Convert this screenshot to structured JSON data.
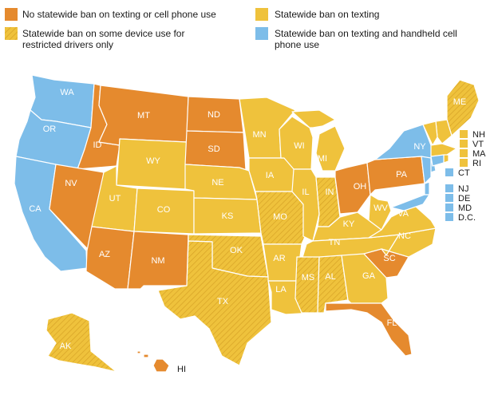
{
  "colors": {
    "no_ban": "#e58a2e",
    "texting_ban": "#efc23c",
    "restricted_drivers": "#efc23c",
    "texting_handheld": "#7dbde9",
    "hatch": "#d6a226",
    "border": "#ffffff"
  },
  "legend": [
    {
      "label": "No statewide ban on texting or cell phone use",
      "category": "no_ban"
    },
    {
      "label": "Statewide ban on texting",
      "category": "texting_ban"
    },
    {
      "label": "Statewide ban on some device use for restricted drivers only",
      "category": "restricted_drivers"
    },
    {
      "label": "Statewide ban on texting and handheld cell phone use",
      "category": "texting_handheld"
    }
  ],
  "states": [
    {
      "abbr": "WA",
      "category": "texting_handheld"
    },
    {
      "abbr": "OR",
      "category": "texting_handheld"
    },
    {
      "abbr": "CA",
      "category": "texting_handheld"
    },
    {
      "abbr": "ID",
      "category": "no_ban"
    },
    {
      "abbr": "NV",
      "category": "no_ban"
    },
    {
      "abbr": "MT",
      "category": "no_ban"
    },
    {
      "abbr": "WY",
      "category": "texting_ban"
    },
    {
      "abbr": "UT",
      "category": "texting_ban"
    },
    {
      "abbr": "AZ",
      "category": "no_ban"
    },
    {
      "abbr": "CO",
      "category": "texting_ban"
    },
    {
      "abbr": "NM",
      "category": "no_ban"
    },
    {
      "abbr": "ND",
      "category": "no_ban"
    },
    {
      "abbr": "SD",
      "category": "no_ban"
    },
    {
      "abbr": "NE",
      "category": "texting_ban"
    },
    {
      "abbr": "KS",
      "category": "texting_ban"
    },
    {
      "abbr": "OK",
      "category": "restricted_drivers"
    },
    {
      "abbr": "TX",
      "category": "restricted_drivers"
    },
    {
      "abbr": "MN",
      "category": "texting_ban"
    },
    {
      "abbr": "IA",
      "category": "texting_ban"
    },
    {
      "abbr": "MO",
      "category": "restricted_drivers"
    },
    {
      "abbr": "AR",
      "category": "texting_ban"
    },
    {
      "abbr": "LA",
      "category": "texting_ban"
    },
    {
      "abbr": "WI",
      "category": "texting_ban"
    },
    {
      "abbr": "IL",
      "category": "texting_ban"
    },
    {
      "abbr": "MI",
      "category": "texting_ban"
    },
    {
      "abbr": "IN",
      "category": "restricted_drivers"
    },
    {
      "abbr": "OH",
      "category": "no_ban"
    },
    {
      "abbr": "KY",
      "category": "texting_ban"
    },
    {
      "abbr": "TN",
      "category": "texting_ban"
    },
    {
      "abbr": "MS",
      "category": "restricted_drivers"
    },
    {
      "abbr": "AL",
      "category": "restricted_drivers"
    },
    {
      "abbr": "GA",
      "category": "texting_ban"
    },
    {
      "abbr": "FL",
      "category": "no_ban"
    },
    {
      "abbr": "SC",
      "category": "no_ban"
    },
    {
      "abbr": "NC",
      "category": "texting_ban"
    },
    {
      "abbr": "VA",
      "category": "texting_ban"
    },
    {
      "abbr": "WV",
      "category": "texting_ban"
    },
    {
      "abbr": "PA",
      "category": "no_ban"
    },
    {
      "abbr": "NY",
      "category": "texting_handheld"
    },
    {
      "abbr": "ME",
      "category": "restricted_drivers"
    },
    {
      "abbr": "AK",
      "category": "restricted_drivers"
    },
    {
      "abbr": "HI",
      "category": "no_ban"
    },
    {
      "abbr": "NH",
      "category": "texting_ban"
    },
    {
      "abbr": "VT",
      "category": "texting_ban"
    },
    {
      "abbr": "MA",
      "category": "texting_ban"
    },
    {
      "abbr": "RI",
      "category": "texting_ban"
    },
    {
      "abbr": "CT",
      "category": "texting_handheld"
    },
    {
      "abbr": "NJ",
      "category": "texting_handheld"
    },
    {
      "abbr": "DE",
      "category": "texting_handheld"
    },
    {
      "abbr": "MD",
      "category": "texting_handheld"
    },
    {
      "abbr": "D.C.",
      "category": "texting_handheld"
    }
  ]
}
